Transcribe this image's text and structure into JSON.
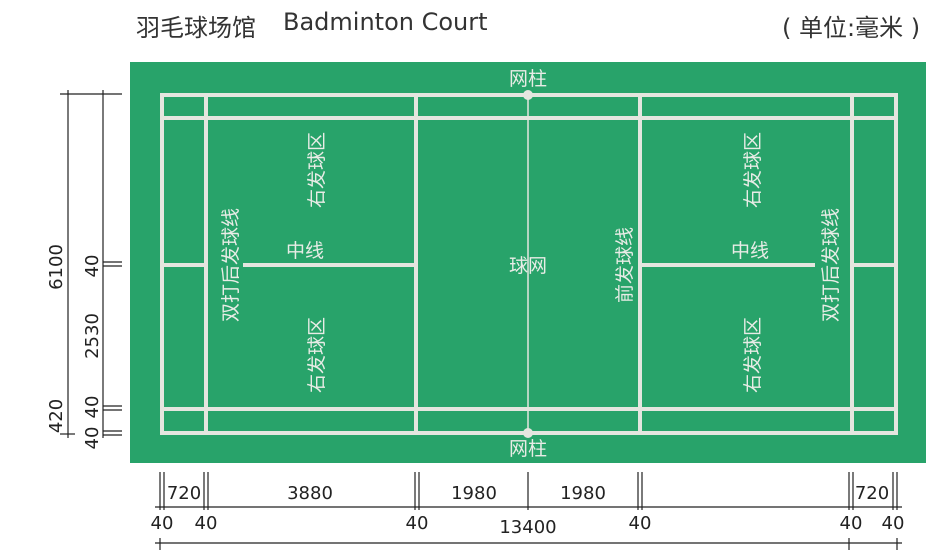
{
  "header": {
    "title_cn": "羽毛球场馆",
    "title_en": "Badminton Court",
    "unit": "( 单位:毫米 )"
  },
  "court": {
    "colors": {
      "surface": "#28a36a",
      "lines": "#e4e6df"
    },
    "labels": {
      "post_top": "网柱",
      "post_bottom": "网柱",
      "net": "球网",
      "left_service_top": "右发球区",
      "left_service_bottom": "右发球区",
      "left_center": "中线",
      "left_back": "双打后发球线",
      "front_service": "前发球线",
      "right_service_top": "右发球区",
      "right_service_bottom": "右发球区",
      "right_center": "中线",
      "right_back": "双打后发球线"
    }
  },
  "dims": {
    "vertical": {
      "total": "6100",
      "top40": "40",
      "half": "2530",
      "mid40": "40",
      "back": "420",
      "bottom40": "40"
    },
    "horizontal": {
      "back1": "720",
      "svc1": "3880",
      "net1": "1980",
      "net2": "1980",
      "back2": "720",
      "l1": "40",
      "l2": "40",
      "l3": "40",
      "l4": "40",
      "l5": "40",
      "l6": "40",
      "total": "13400"
    }
  }
}
